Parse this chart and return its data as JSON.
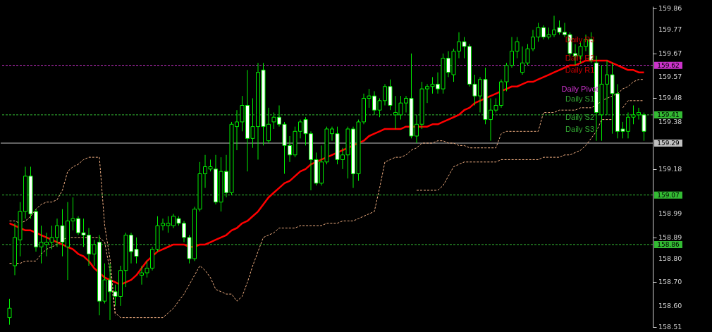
{
  "chart_data": {
    "type": "candlestick",
    "categories": [
      null,
      null,
      null,
      null,
      null,
      null,
      null,
      null,
      null,
      null,
      null,
      null,
      null,
      null,
      null,
      null,
      null,
      null,
      null,
      null,
      null,
      null,
      null,
      null,
      null,
      null,
      null,
      null,
      null,
      null,
      null,
      null,
      null,
      null,
      null,
      null,
      null,
      null,
      null,
      null,
      null,
      null,
      null,
      null,
      null,
      null,
      null,
      null,
      null,
      null,
      null,
      null,
      null,
      null,
      null,
      null,
      null,
      null,
      null,
      null,
      null,
      null,
      null,
      null,
      null,
      null,
      null,
      null,
      null,
      null,
      null,
      null,
      null,
      null,
      null,
      null,
      null,
      null,
      null,
      null,
      null,
      null,
      null,
      null,
      null,
      null,
      null,
      null,
      null,
      null,
      null,
      null,
      null,
      null,
      null,
      null,
      null,
      null,
      null,
      null,
      null,
      null,
      null,
      null,
      null,
      null,
      null,
      null,
      null,
      null,
      null,
      null,
      null,
      null,
      null,
      null,
      null,
      null,
      null,
      null,
      null
    ],
    "ohlc": [
      [
        158.55,
        158.63,
        158.52,
        158.59
      ],
      [
        158.77,
        158.95,
        158.73,
        158.89
      ],
      [
        158.88,
        159.04,
        158.81,
        159.0
      ],
      [
        159.0,
        159.19,
        158.97,
        159.15
      ],
      [
        159.15,
        159.19,
        158.97,
        158.99
      ],
      [
        159.0,
        159.01,
        158.83,
        158.85
      ],
      [
        158.85,
        158.94,
        158.78,
        158.87
      ],
      [
        158.86,
        158.91,
        158.81,
        158.87
      ],
      [
        158.87,
        158.94,
        158.84,
        158.89
      ],
      [
        158.89,
        158.97,
        158.85,
        158.94
      ],
      [
        158.94,
        159.01,
        158.81,
        158.87
      ],
      [
        158.85,
        159.04,
        158.71,
        158.96
      ],
      [
        158.96,
        159.06,
        158.92,
        158.97
      ],
      [
        158.97,
        158.98,
        158.9,
        158.91
      ],
      [
        158.91,
        158.97,
        158.85,
        158.9
      ],
      [
        158.9,
        158.93,
        158.77,
        158.82
      ],
      [
        158.82,
        158.88,
        158.77,
        158.86
      ],
      [
        158.87,
        158.9,
        158.56,
        158.62
      ],
      [
        158.62,
        158.78,
        158.61,
        158.71
      ],
      [
        158.71,
        158.78,
        158.54,
        158.66
      ],
      [
        158.66,
        158.69,
        158.6,
        158.64
      ],
      [
        158.64,
        158.77,
        158.6,
        158.75
      ],
      [
        158.75,
        158.91,
        158.68,
        158.9
      ],
      [
        158.9,
        158.91,
        158.78,
        158.83
      ],
      [
        158.84,
        158.89,
        158.78,
        158.81
      ],
      [
        158.73,
        158.77,
        158.69,
        158.74
      ],
      [
        158.74,
        158.79,
        158.72,
        158.76
      ],
      [
        158.76,
        158.85,
        158.75,
        158.84
      ],
      [
        158.84,
        158.98,
        158.83,
        158.94
      ],
      [
        158.94,
        158.97,
        158.92,
        158.95
      ],
      [
        158.94,
        158.98,
        158.91,
        158.95
      ],
      [
        158.94,
        158.99,
        158.93,
        158.98
      ],
      [
        158.97,
        158.98,
        158.94,
        158.95
      ],
      [
        158.95,
        158.96,
        158.87,
        158.89
      ],
      [
        158.89,
        158.9,
        158.78,
        158.8
      ],
      [
        158.8,
        159.02,
        158.79,
        159.01
      ],
      [
        159.01,
        159.21,
        159.0,
        159.16
      ],
      [
        159.16,
        159.24,
        159.1,
        159.19
      ],
      [
        159.18,
        159.22,
        159.17,
        159.19
      ],
      [
        159.18,
        159.24,
        159.03,
        159.04
      ],
      [
        159.04,
        159.23,
        159.0,
        159.17
      ],
      [
        159.17,
        159.24,
        159.06,
        159.08
      ],
      [
        159.08,
        159.38,
        159.07,
        159.37
      ],
      [
        159.36,
        159.43,
        159.26,
        159.38
      ],
      [
        159.38,
        159.49,
        159.34,
        159.45
      ],
      [
        159.45,
        159.6,
        159.17,
        159.31
      ],
      [
        159.31,
        159.48,
        159.27,
        159.36
      ],
      [
        159.36,
        159.63,
        159.22,
        159.59
      ],
      [
        159.6,
        159.63,
        159.28,
        159.36
      ],
      [
        159.3,
        159.44,
        159.29,
        159.37
      ],
      [
        159.38,
        159.42,
        159.35,
        159.4
      ],
      [
        159.4,
        159.45,
        159.36,
        159.37
      ],
      [
        159.37,
        159.38,
        159.16,
        159.28
      ],
      [
        159.28,
        159.32,
        159.21,
        159.24
      ],
      [
        159.24,
        159.36,
        159.23,
        159.34
      ],
      [
        159.34,
        159.39,
        159.31,
        159.38
      ],
      [
        159.39,
        159.4,
        159.28,
        159.33
      ],
      [
        159.33,
        159.34,
        159.09,
        159.22
      ],
      [
        159.22,
        159.25,
        159.11,
        159.12
      ],
      [
        159.12,
        159.28,
        159.11,
        159.21
      ],
      [
        159.21,
        159.36,
        159.2,
        159.35
      ],
      [
        159.33,
        159.36,
        159.3,
        159.35
      ],
      [
        159.33,
        159.36,
        159.2,
        159.22
      ],
      [
        159.22,
        159.27,
        159.18,
        159.24
      ],
      [
        159.24,
        159.36,
        159.14,
        159.35
      ],
      [
        159.35,
        159.36,
        159.1,
        159.16
      ],
      [
        159.16,
        159.39,
        159.13,
        159.38
      ],
      [
        159.38,
        159.5,
        159.37,
        159.48
      ],
      [
        159.48,
        159.52,
        159.44,
        159.49
      ],
      [
        159.49,
        159.51,
        159.41,
        159.43
      ],
      [
        159.43,
        159.48,
        159.4,
        159.47
      ],
      [
        159.47,
        159.54,
        159.45,
        159.53
      ],
      [
        159.53,
        159.56,
        159.43,
        159.45
      ],
      [
        159.41,
        159.49,
        159.35,
        159.42
      ],
      [
        159.41,
        159.49,
        159.39,
        159.46
      ],
      [
        159.46,
        159.49,
        159.42,
        159.48
      ],
      [
        159.48,
        159.67,
        159.31,
        159.32
      ],
      [
        159.32,
        159.41,
        159.29,
        159.37
      ],
      [
        159.37,
        159.55,
        159.35,
        159.52
      ],
      [
        159.52,
        159.54,
        159.46,
        159.53
      ],
      [
        159.53,
        159.57,
        159.5,
        159.54
      ],
      [
        159.54,
        159.59,
        159.5,
        159.52
      ],
      [
        159.52,
        159.67,
        159.5,
        159.65
      ],
      [
        159.65,
        159.68,
        159.57,
        159.59
      ],
      [
        159.58,
        159.69,
        159.55,
        159.68
      ],
      [
        159.68,
        159.76,
        159.65,
        159.72
      ],
      [
        159.72,
        159.74,
        159.65,
        159.7
      ],
      [
        159.7,
        159.71,
        159.53,
        159.54
      ],
      [
        159.54,
        159.58,
        159.45,
        159.49
      ],
      [
        159.49,
        159.57,
        159.42,
        159.56
      ],
      [
        159.56,
        159.61,
        159.37,
        159.39
      ],
      [
        159.39,
        159.48,
        159.3,
        159.43
      ],
      [
        159.43,
        159.48,
        159.42,
        159.45
      ],
      [
        159.45,
        159.56,
        159.44,
        159.55
      ],
      [
        159.55,
        159.63,
        159.51,
        159.62
      ],
      [
        159.62,
        159.74,
        159.61,
        159.68
      ],
      [
        159.68,
        159.74,
        159.65,
        159.72
      ],
      [
        159.59,
        159.7,
        159.58,
        159.63
      ],
      [
        159.63,
        159.71,
        159.62,
        159.69
      ],
      [
        159.69,
        159.77,
        159.68,
        159.74
      ],
      [
        159.74,
        159.8,
        159.72,
        159.78
      ],
      [
        159.78,
        159.79,
        159.73,
        159.74
      ],
      [
        159.74,
        159.78,
        159.73,
        159.75
      ],
      [
        159.75,
        159.83,
        159.74,
        159.77
      ],
      [
        159.78,
        159.81,
        159.75,
        159.76
      ],
      [
        159.76,
        159.8,
        159.74,
        159.75
      ],
      [
        159.75,
        159.76,
        159.64,
        159.67
      ],
      [
        159.67,
        159.71,
        159.62,
        159.66
      ],
      [
        159.66,
        159.72,
        159.63,
        159.7
      ],
      [
        159.7,
        159.75,
        159.68,
        159.73
      ],
      [
        159.73,
        159.76,
        159.63,
        159.64
      ],
      [
        159.63,
        159.66,
        159.3,
        159.42
      ],
      [
        159.41,
        159.62,
        159.3,
        159.54
      ],
      [
        159.54,
        159.64,
        159.41,
        159.58
      ],
      [
        159.58,
        159.63,
        159.33,
        159.5
      ],
      [
        159.5,
        159.54,
        159.31,
        159.34
      ],
      [
        159.35,
        159.38,
        159.31,
        159.34
      ],
      [
        159.34,
        159.42,
        159.31,
        159.4
      ],
      [
        159.4,
        159.45,
        159.37,
        159.41
      ],
      [
        159.41,
        159.44,
        159.39,
        159.42
      ],
      [
        159.41,
        159.42,
        159.3,
        159.34
      ]
    ],
    "series": [
      {
        "type": "line",
        "color": "#ff0000",
        "values": [
          158.95,
          158.94,
          158.93,
          158.92,
          158.92,
          158.91,
          158.9,
          158.89,
          158.88,
          158.87,
          158.86,
          158.85,
          158.84,
          158.82,
          158.81,
          158.79,
          158.76,
          158.74,
          158.72,
          158.71,
          158.7,
          158.69,
          158.7,
          158.71,
          158.73,
          158.76,
          158.79,
          158.81,
          158.83,
          158.84,
          158.85,
          158.86,
          158.86,
          158.86,
          158.85,
          158.85,
          158.86,
          158.86,
          158.87,
          158.88,
          158.89,
          158.9,
          158.92,
          158.93,
          158.95,
          158.96,
          158.98,
          159.0,
          159.03,
          159.06,
          159.08,
          159.1,
          159.12,
          159.13,
          159.15,
          159.17,
          159.18,
          159.2,
          159.21,
          159.22,
          159.23,
          159.24,
          159.25,
          159.26,
          159.27,
          159.28,
          159.29,
          159.3,
          159.32,
          159.33,
          159.34,
          159.35,
          159.35,
          159.35,
          159.35,
          159.36,
          159.36,
          159.36,
          159.36,
          159.36,
          159.37,
          159.37,
          159.38,
          159.39,
          159.4,
          159.41,
          159.43,
          159.44,
          159.46,
          159.47,
          159.48,
          159.49,
          159.5,
          159.51,
          159.52,
          159.53,
          159.53,
          159.54,
          159.55,
          159.55,
          159.56,
          159.57,
          159.58,
          159.59,
          159.6,
          159.61,
          159.62,
          159.62,
          159.63,
          159.64,
          159.64,
          159.64,
          159.64,
          159.64,
          159.63,
          159.62,
          159.61,
          159.6,
          159.6,
          159.59,
          159.59
        ]
      },
      {
        "type": "line",
        "color": "#f4b183",
        "line_style": "dashed",
        "values": [
          158.96,
          158.96,
          158.95,
          158.96,
          158.98,
          159.01,
          159.03,
          159.04,
          159.04,
          159.05,
          159.09,
          159.17,
          159.19,
          159.2,
          159.22,
          159.23,
          159.23,
          159.23,
          158.94,
          158.8,
          158.57,
          158.55,
          158.55,
          158.55,
          158.55,
          158.55,
          158.55,
          158.55,
          158.55,
          158.55,
          158.57,
          158.59,
          158.62,
          158.65,
          158.69,
          158.73,
          158.77,
          158.75,
          158.72,
          158.67,
          158.66,
          158.65,
          158.65,
          158.62,
          158.64,
          158.7,
          158.77,
          158.83,
          158.89,
          158.9,
          158.91,
          158.93,
          158.93,
          158.93,
          158.93,
          158.94,
          158.94,
          158.94,
          158.94,
          158.94,
          158.95,
          158.95,
          158.95,
          158.96,
          158.96,
          158.96,
          158.97,
          158.98,
          158.99,
          159.0,
          159.1,
          159.21,
          159.22,
          159.23,
          159.23,
          159.24,
          159.26,
          159.27,
          159.29,
          159.29,
          159.29,
          159.3,
          159.3,
          159.29,
          159.29,
          159.28,
          159.28,
          159.27,
          159.27,
          159.27,
          159.27,
          159.27,
          159.27,
          159.33,
          159.34,
          159.34,
          159.34,
          159.34,
          159.34,
          159.34,
          159.34,
          159.42,
          159.42,
          159.42,
          159.43,
          159.43,
          159.43,
          159.43,
          159.44,
          159.44,
          159.44,
          159.45,
          159.47,
          159.48,
          159.49,
          159.5,
          159.52,
          159.53,
          159.55,
          159.56,
          159.56
        ]
      },
      {
        "type": "line",
        "color": "#f4b183",
        "line_style": "dashed",
        "values": [
          158.78,
          158.78,
          158.78,
          158.79,
          158.79,
          158.79,
          158.82,
          158.84,
          158.85,
          158.86,
          158.88,
          158.89,
          158.89,
          158.89,
          158.89,
          158.89,
          158.89,
          158.89,
          158.87,
          158.75,
          158.56,
          null,
          null,
          null,
          null,
          null,
          null,
          null,
          null,
          null,
          null,
          null,
          null,
          null,
          null,
          null,
          null,
          null,
          null,
          null,
          null,
          null,
          null,
          null,
          null,
          null,
          null,
          null,
          null,
          null,
          null,
          null,
          null,
          null,
          null,
          null,
          null,
          null,
          null,
          null,
          null,
          null,
          null,
          null,
          null,
          null,
          null,
          null,
          null,
          null,
          null,
          null,
          null,
          null,
          null,
          null,
          null,
          159.09,
          159.09,
          159.09,
          159.09,
          159.09,
          159.11,
          159.15,
          159.19,
          159.2,
          159.21,
          159.21,
          159.21,
          159.21,
          159.21,
          159.21,
          159.21,
          159.22,
          159.22,
          159.22,
          159.22,
          159.22,
          159.22,
          159.22,
          159.22,
          159.23,
          159.23,
          159.23,
          159.23,
          159.24,
          159.24,
          159.25,
          159.26,
          159.28,
          159.31,
          159.34,
          159.39,
          159.39,
          159.39,
          null,
          159.44,
          159.47,
          159.47,
          159.47,
          159.47
        ]
      }
    ],
    "ylim": [
      158.51,
      159.87
    ],
    "yticks": [
      158.51,
      {
        "value": 158.6,
        "label": "158.60"
      },
      {
        "value": 158.7,
        "label": "158.70"
      },
      {
        "value": 158.8,
        "label": "158.80"
      },
      158.89,
      158.99,
      159.18,
      159.38,
      159.48,
      159.57,
      159.67,
      159.77,
      159.86
    ],
    "tick_labels": "y",
    "ref_lines": [
      {
        "axis": "y",
        "value": 159.62,
        "label": "159.62",
        "color": "#cc33cc",
        "line_style": "dashed"
      },
      {
        "axis": "y",
        "value": 159.41,
        "label": "159.41",
        "color": "#33bb33",
        "line_style": "dashed"
      },
      {
        "axis": "y",
        "value": 159.29,
        "label": "159.29",
        "color": "#c0c0c0",
        "line_style": "solid"
      },
      {
        "axis": "y",
        "value": 159.07,
        "label": "159.07",
        "color": "#33bb33",
        "line_style": "dashed"
      },
      {
        "axis": "y",
        "value": 158.86,
        "label": "158.86",
        "color": "#33bb33",
        "line_style": "dashed"
      }
    ],
    "annotations": [
      "Daily R3",
      "Daily R2",
      "Daily R1",
      "Daily Pivot",
      "Daily S1",
      "Daily S2",
      "Daily S3"
    ]
  }
}
